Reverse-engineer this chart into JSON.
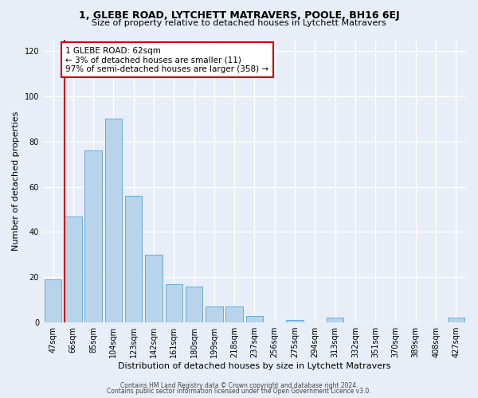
{
  "title": "1, GLEBE ROAD, LYTCHETT MATRAVERS, POOLE, BH16 6EJ",
  "subtitle": "Size of property relative to detached houses in Lytchett Matravers",
  "xlabel": "Distribution of detached houses by size in Lytchett Matravers",
  "ylabel": "Number of detached properties",
  "bar_labels": [
    "47sqm",
    "66sqm",
    "85sqm",
    "104sqm",
    "123sqm",
    "142sqm",
    "161sqm",
    "180sqm",
    "199sqm",
    "218sqm",
    "237sqm",
    "256sqm",
    "275sqm",
    "294sqm",
    "313sqm",
    "332sqm",
    "351sqm",
    "370sqm",
    "389sqm",
    "408sqm",
    "427sqm"
  ],
  "bar_values": [
    19,
    47,
    76,
    90,
    56,
    30,
    17,
    16,
    7,
    7,
    3,
    0,
    1,
    0,
    2,
    0,
    0,
    0,
    0,
    0,
    2
  ],
  "bar_color": "#b8d4ea",
  "bar_edge_color": "#6aaad4",
  "annotation_text_line1": "1 GLEBE ROAD: 62sqm",
  "annotation_text_line2": "← 3% of detached houses are smaller (11)",
  "annotation_text_line3": "97% of semi-detached houses are larger (358) →",
  "annotation_box_facecolor": "#ffffff",
  "annotation_box_edgecolor": "#cc0000",
  "vline_color": "#cc0000",
  "ylim_max": 125,
  "yticks": [
    0,
    20,
    40,
    60,
    80,
    100,
    120
  ],
  "footnote1": "Contains HM Land Registry data © Crown copyright and database right 2024.",
  "footnote2": "Contains public sector information licensed under the Open Government Licence v3.0.",
  "bg_color": "#e8eef8",
  "grid_color": "#ffffff",
  "title_fontsize": 9,
  "subtitle_fontsize": 8,
  "xlabel_fontsize": 8,
  "ylabel_fontsize": 8,
  "tick_fontsize": 7,
  "footnote_fontsize": 5.5
}
